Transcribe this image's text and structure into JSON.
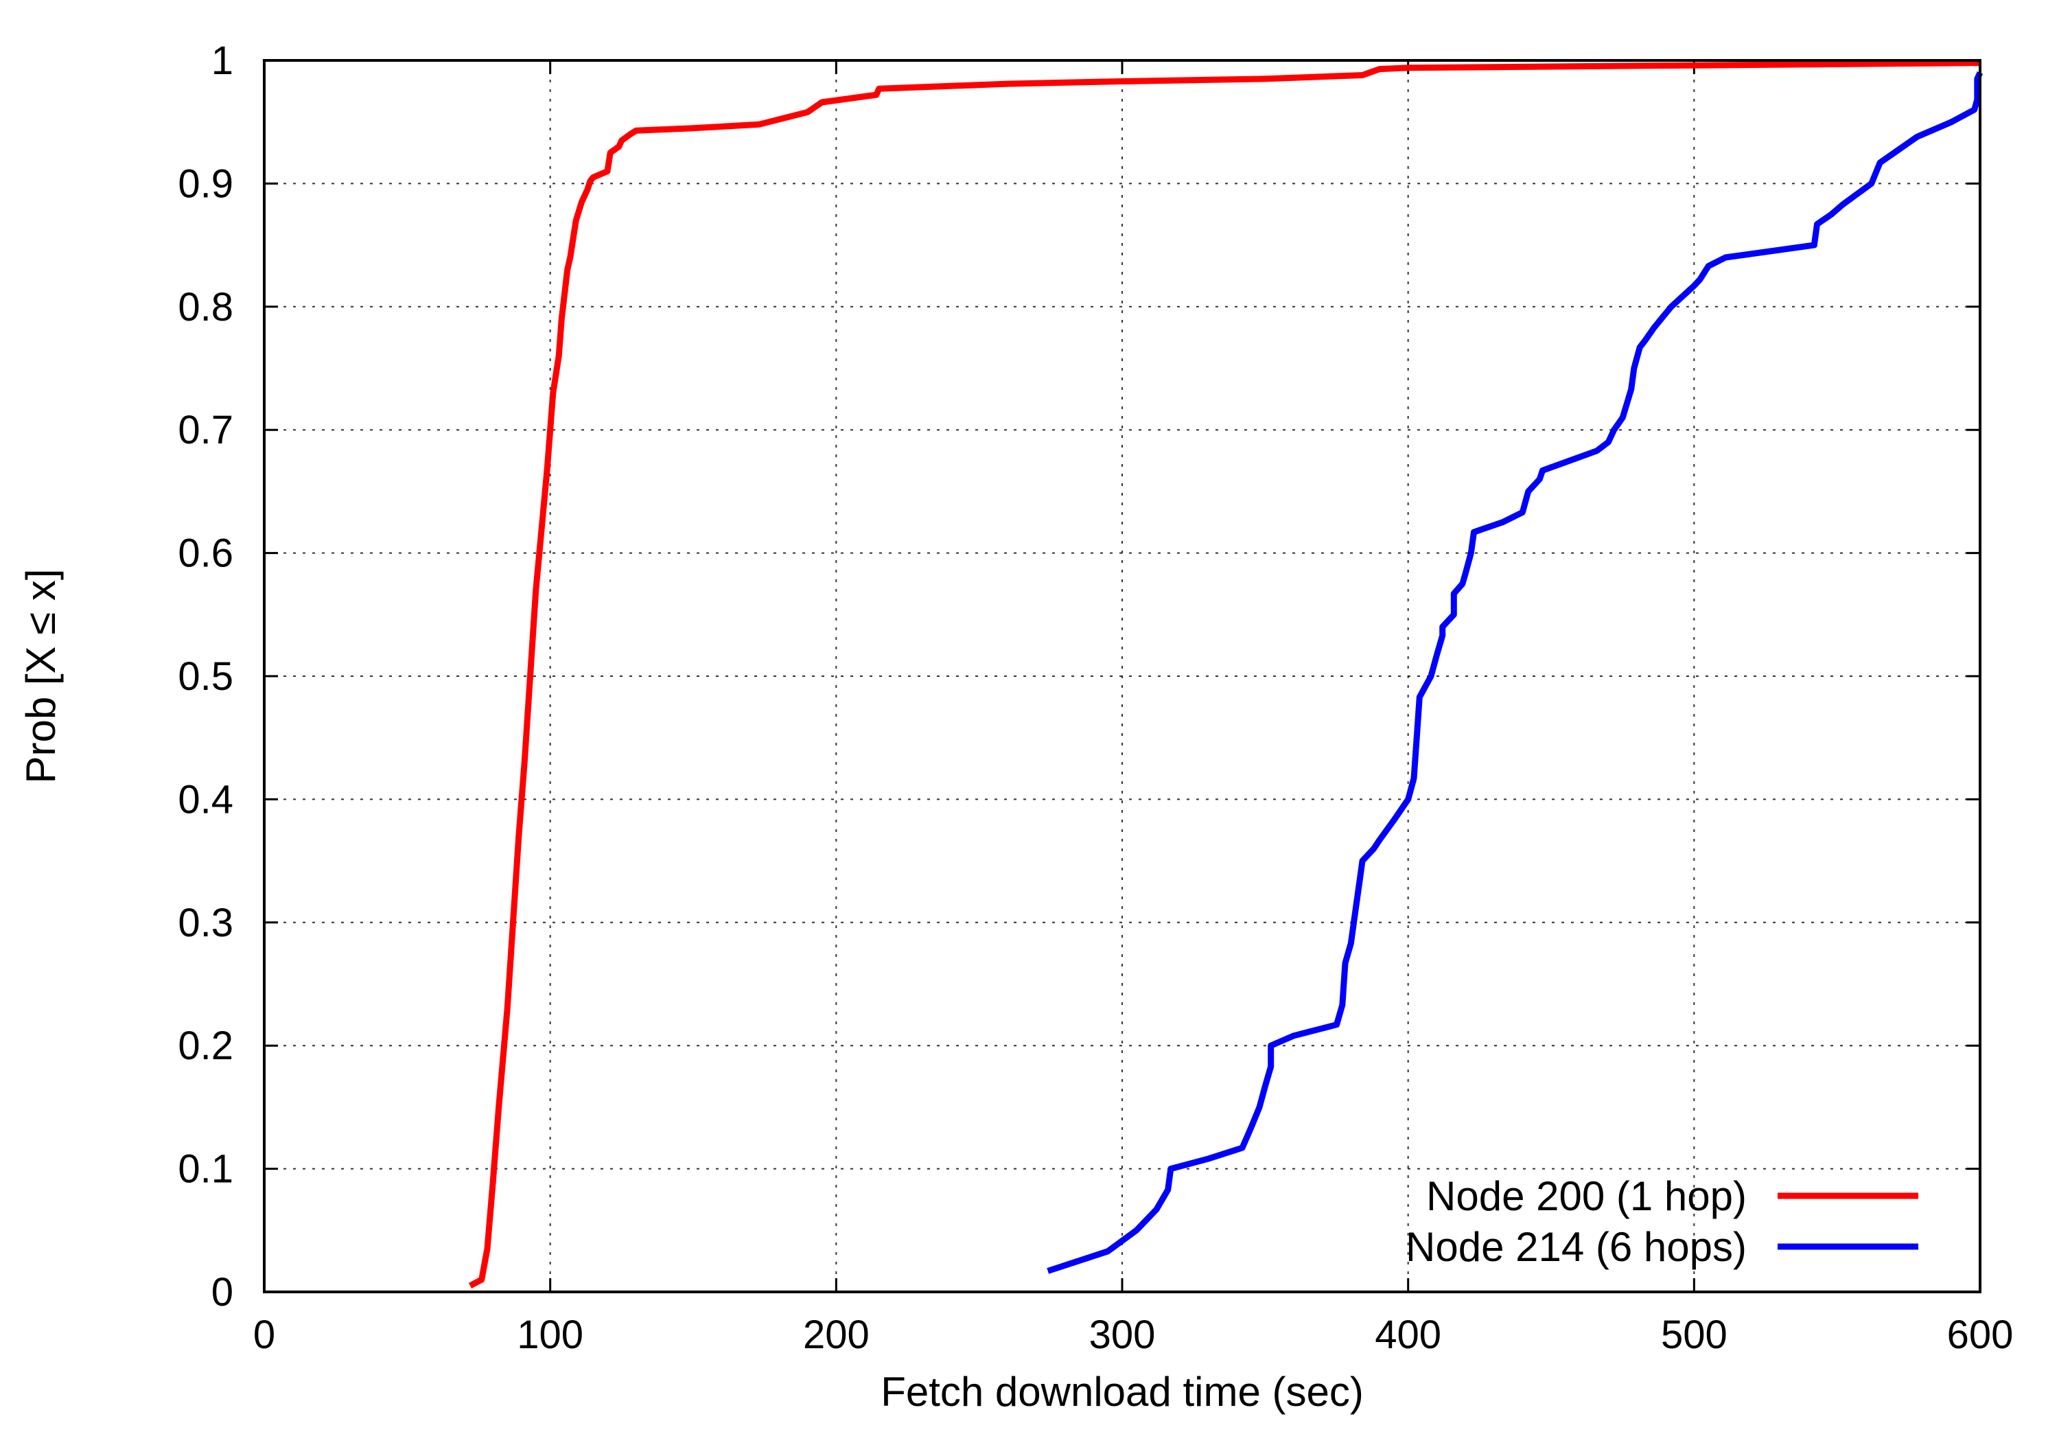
{
  "chart_data": {
    "type": "line",
    "title": "",
    "xlabel": "Fetch download time (sec)",
    "ylabel": "Prob [X ≤ x]",
    "xlim": [
      0,
      600
    ],
    "ylim": [
      0,
      1
    ],
    "xticks": [
      0,
      100,
      200,
      300,
      400,
      500,
      600
    ],
    "yticks": [
      0,
      0.1,
      0.2,
      0.3,
      0.4,
      0.5,
      0.6,
      0.7,
      0.8,
      0.9,
      1
    ],
    "xtick_labels": [
      "0",
      "100",
      "200",
      "300",
      "400",
      "500",
      "600"
    ],
    "ytick_labels": [
      "0",
      "0.1",
      "0.2",
      "0.3",
      "0.4",
      "0.5",
      "0.6",
      "0.7",
      "0.8",
      "0.9",
      "1"
    ],
    "grid": true,
    "legend_position": "bottom-right",
    "series": [
      {
        "name": "Node 200 (1 hop)",
        "color": "#ff0000",
        "x": [
          72,
          76,
          78,
          80,
          82,
          85,
          87,
          89,
          91,
          93,
          95,
          97,
          99,
          101,
          103,
          104,
          106,
          107,
          109,
          111,
          113,
          114,
          115,
          120,
          121,
          124,
          125,
          128,
          130,
          150,
          173,
          190,
          195,
          214,
          215,
          260,
          300,
          350,
          384,
          390,
          400,
          500,
          600
        ],
        "y": [
          0.005,
          0.01,
          0.035,
          0.09,
          0.15,
          0.23,
          0.3,
          0.37,
          0.43,
          0.5,
          0.57,
          0.62,
          0.67,
          0.73,
          0.76,
          0.79,
          0.83,
          0.84,
          0.87,
          0.885,
          0.895,
          0.902,
          0.905,
          0.91,
          0.925,
          0.93,
          0.935,
          0.94,
          0.943,
          0.945,
          0.948,
          0.958,
          0.966,
          0.972,
          0.977,
          0.981,
          0.983,
          0.985,
          0.988,
          0.993,
          0.994,
          0.996,
          0.998
        ]
      },
      {
        "name": "Node 214 (6 hops)",
        "color": "#0000ff",
        "x": [
          274,
          295,
          305,
          312,
          316,
          317,
          330,
          342,
          345,
          348,
          350,
          352,
          352,
          360,
          375,
          377,
          378,
          380,
          381,
          383,
          384,
          388,
          390,
          395,
          400,
          402,
          403,
          404,
          408,
          410,
          412,
          412,
          416,
          416,
          419,
          420,
          422,
          423,
          433,
          440,
          442,
          446,
          447,
          466,
          470,
          472,
          475,
          478,
          479,
          481,
          483,
          486,
          492,
          500,
          502,
          505,
          511,
          542,
          543,
          548,
          552,
          562,
          565,
          570,
          578,
          590,
          598,
          599,
          599,
          600
        ],
        "y": [
          0.017,
          0.033,
          0.05,
          0.067,
          0.083,
          0.1,
          0.108,
          0.117,
          0.133,
          0.15,
          0.167,
          0.183,
          0.2,
          0.208,
          0.217,
          0.233,
          0.267,
          0.283,
          0.3,
          0.333,
          0.35,
          0.36,
          0.367,
          0.383,
          0.4,
          0.417,
          0.45,
          0.483,
          0.5,
          0.517,
          0.533,
          0.54,
          0.55,
          0.567,
          0.575,
          0.583,
          0.6,
          0.617,
          0.625,
          0.633,
          0.65,
          0.66,
          0.667,
          0.683,
          0.69,
          0.7,
          0.71,
          0.733,
          0.75,
          0.767,
          0.773,
          0.783,
          0.8,
          0.817,
          0.822,
          0.833,
          0.84,
          0.85,
          0.867,
          0.875,
          0.883,
          0.9,
          0.917,
          0.925,
          0.938,
          0.95,
          0.96,
          0.968,
          0.985,
          0.99
        ]
      }
    ]
  }
}
